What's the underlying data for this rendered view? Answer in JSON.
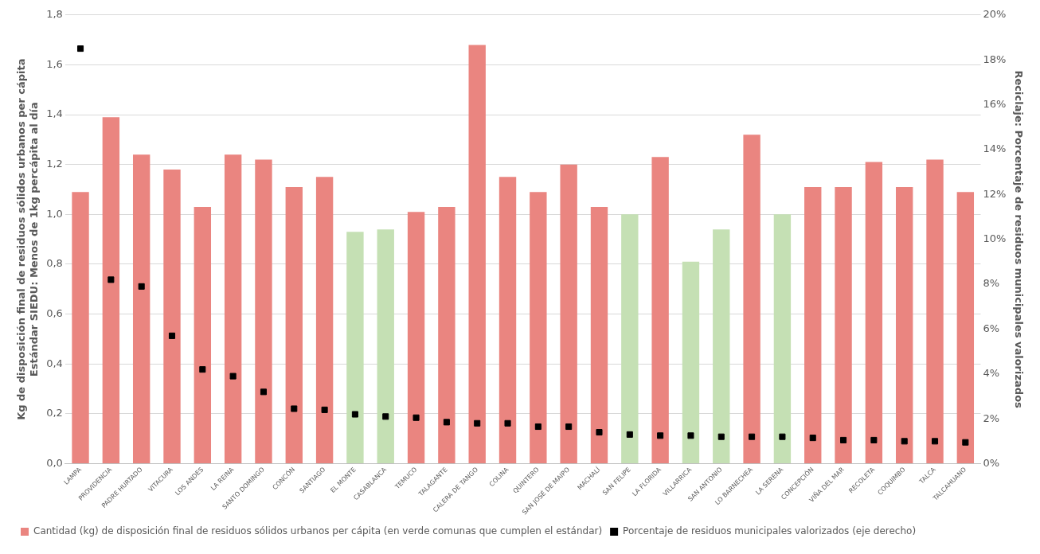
{
  "chart_data": {
    "type": "bar",
    "categories": [
      "LAMPA",
      "PROVIDENCIA",
      "PADRE HURTADO",
      "VITACURA",
      "LOS ANDES",
      "LA REINA",
      "SANTO DOMINGO",
      "CONCÓN",
      "SANTIAGO",
      "EL MONTE",
      "CASABLANCA",
      "TEMUCO",
      "TALAGANTE",
      "CALERA DE TANGO",
      "COLINA",
      "QUINTERO",
      "SAN JOSÉ DE MAIPO",
      "MACHALÍ",
      "SAN FELIPE",
      "LA FLORIDA",
      "VILLARRICA",
      "SAN ANTONIO",
      "LO BARNECHEA",
      "LA SERENA",
      "CONCEPCIÓN",
      "VIÑA DEL MAR",
      "RECOLETA",
      "COQUIMBO",
      "TALCA",
      "TALCAHUANO"
    ],
    "series": [
      {
        "name": "Cantidad (kg) de disposición final de residuos sólidos urbanos per cápita (en verde comunas que cumplen el estándar)",
        "color": "#ea8580",
        "colors": [
          "#ea8580",
          "#ea8580",
          "#ea8580",
          "#ea8580",
          "#ea8580",
          "#ea8580",
          "#ea8580",
          "#ea8580",
          "#ea8580",
          "#c5e0b4",
          "#c5e0b4",
          "#ea8580",
          "#ea8580",
          "#ea8580",
          "#ea8580",
          "#ea8580",
          "#ea8580",
          "#ea8580",
          "#c5e0b4",
          "#ea8580",
          "#c5e0b4",
          "#c5e0b4",
          "#ea8580",
          "#c5e0b4",
          "#ea8580",
          "#ea8580",
          "#ea8580",
          "#ea8580",
          "#ea8580",
          "#ea8580"
        ],
        "values": [
          1.09,
          1.39,
          1.24,
          1.18,
          1.03,
          1.24,
          1.22,
          1.11,
          1.15,
          0.93,
          0.94,
          1.01,
          1.03,
          1.68,
          1.15,
          1.09,
          1.2,
          1.03,
          1.0,
          1.23,
          0.81,
          0.94,
          1.32,
          1.0,
          1.11,
          1.11,
          1.21,
          1.11,
          1.22,
          1.09
        ]
      },
      {
        "type": "scatter",
        "name": "Porcentaje de residuos municipales valorizados (eje derecho)",
        "color": "#000000",
        "axis": "y2",
        "marker": "square",
        "values": [
          18.5,
          8.2,
          7.9,
          5.7,
          4.2,
          3.9,
          3.2,
          2.45,
          2.4,
          2.2,
          2.1,
          2.05,
          1.85,
          1.8,
          1.8,
          1.65,
          1.65,
          1.4,
          1.3,
          1.25,
          1.25,
          1.2,
          1.2,
          1.2,
          1.15,
          1.05,
          1.05,
          1.0,
          1.0,
          0.95
        ]
      }
    ],
    "ylabel": "Kg de disposición final de residuos sólidos urbanos per cápita\nEstándar SIEDU: Menos de 1kg percápita al día",
    "y2label": "Reciclaje: Porcentaje de residuos municipales valorizados",
    "ylim": [
      0,
      1.8
    ],
    "yticks": [
      {
        "value": 0,
        "label": "0,0"
      },
      {
        "value": 0.2,
        "label": "0,2"
      },
      {
        "value": 0.4,
        "label": "0,4"
      },
      {
        "value": 0.6,
        "label": "0,6"
      },
      {
        "value": 0.8,
        "label": "0,8"
      },
      {
        "value": 1.0,
        "label": "1,0"
      },
      {
        "value": 1.2,
        "label": "1,2"
      },
      {
        "value": 1.4,
        "label": "1,4"
      },
      {
        "value": 1.6,
        "label": "1,6"
      },
      {
        "value": 1.8,
        "label": "1,8"
      }
    ],
    "y2lim": [
      0,
      20
    ],
    "y2ticks": [
      {
        "value": 0,
        "label": "0%"
      },
      {
        "value": 2,
        "label": "2%"
      },
      {
        "value": 4,
        "label": "4%"
      },
      {
        "value": 6,
        "label": "6%"
      },
      {
        "value": 8,
        "label": "8%"
      },
      {
        "value": 10,
        "label": "10%"
      },
      {
        "value": 12,
        "label": "12%"
      },
      {
        "value": 14,
        "label": "14%"
      },
      {
        "value": 16,
        "label": "16%"
      },
      {
        "value": 18,
        "label": "18%"
      },
      {
        "value": 20,
        "label": "20%"
      }
    ],
    "grid": "y",
    "legend": "bottom"
  }
}
